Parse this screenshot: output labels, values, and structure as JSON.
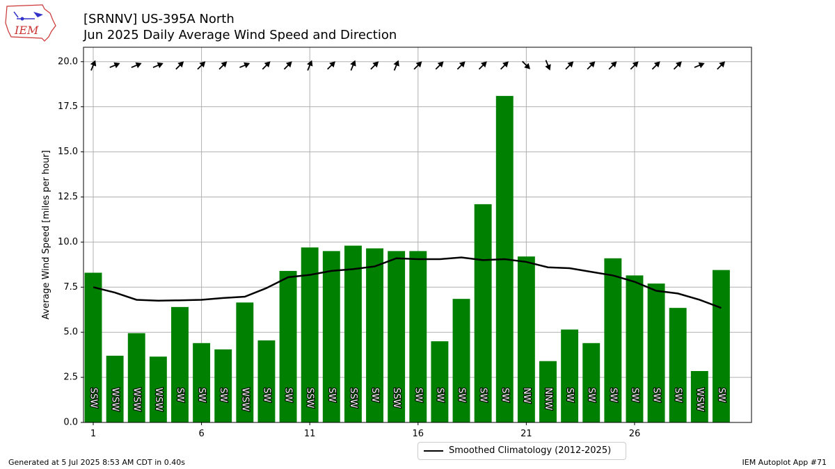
{
  "header": {
    "title_line1": "[SRNNV] US-395A North",
    "title_line2": "Jun 2025 Daily Average Wind Speed and Direction",
    "logo_text": "IEM"
  },
  "footer": {
    "generated": "Generated at 5 Jul 2025 8:53 AM CDT in 0.40s",
    "app": "IEM Autoplot App #71"
  },
  "legend": {
    "climatology_label": "Smoothed Climatology (2012-2025)"
  },
  "colors": {
    "bar": "#008000",
    "line": "#000000",
    "grid": "#b0b0b0"
  },
  "chart_data": {
    "type": "bar",
    "ylabel": "Average Wind Speed [miles per hour]",
    "xlabel": "",
    "ylim": [
      0,
      20.8
    ],
    "xlim": [
      0.55,
      31.4
    ],
    "grid": true,
    "legend_position": "bottom-center",
    "x_ticks": [
      1,
      6,
      11,
      16,
      21,
      26
    ],
    "y_ticks": [
      0.0,
      2.5,
      5.0,
      7.5,
      10.0,
      12.5,
      15.0,
      17.5,
      20.0
    ],
    "days": [
      1,
      2,
      3,
      4,
      5,
      6,
      7,
      8,
      9,
      10,
      11,
      12,
      13,
      14,
      15,
      16,
      17,
      18,
      19,
      20,
      21,
      22,
      23,
      24,
      25,
      26,
      27,
      28,
      29,
      30
    ],
    "series": [
      {
        "type": "bar",
        "values": [
          8.3,
          3.7,
          4.95,
          3.65,
          6.4,
          4.4,
          4.05,
          6.65,
          4.55,
          8.4,
          9.7,
          9.5,
          9.8,
          9.65,
          9.5,
          9.5,
          4.5,
          6.85,
          12.1,
          18.1,
          9.2,
          3.4,
          5.15,
          4.4,
          9.1,
          8.15,
          7.7,
          6.35,
          2.85,
          8.45
        ]
      },
      {
        "name": "Smoothed Climatology (2012-2025)",
        "type": "line",
        "values": [
          7.5,
          7.2,
          6.8,
          6.75,
          6.77,
          6.8,
          6.9,
          6.97,
          7.45,
          8.05,
          8.18,
          8.4,
          8.5,
          8.65,
          9.1,
          9.05,
          9.05,
          9.15,
          9.0,
          9.05,
          8.9,
          8.6,
          8.55,
          8.35,
          8.15,
          7.8,
          7.3,
          7.15,
          6.8,
          6.35
        ]
      }
    ],
    "direction_labels": [
      "SSW",
      "WSW",
      "WSW",
      "WSW",
      "SW",
      "SW",
      "SW",
      "WSW",
      "SW",
      "SW",
      "SSW",
      "SW",
      "SSW",
      "SW",
      "SSW",
      "SW",
      "SW",
      "SW",
      "SW",
      "SW",
      "NW",
      "NNW",
      "SW",
      "SW",
      "SW",
      "SW",
      "SW",
      "SW",
      "WSW",
      "SW"
    ],
    "direction_degrees": [
      202.5,
      247.5,
      247.5,
      247.5,
      225,
      225,
      225,
      247.5,
      225,
      225,
      202.5,
      225,
      202.5,
      225,
      202.5,
      225,
      225,
      225,
      225,
      225,
      315,
      337.5,
      225,
      225,
      225,
      225,
      225,
      225,
      247.5,
      225
    ]
  }
}
